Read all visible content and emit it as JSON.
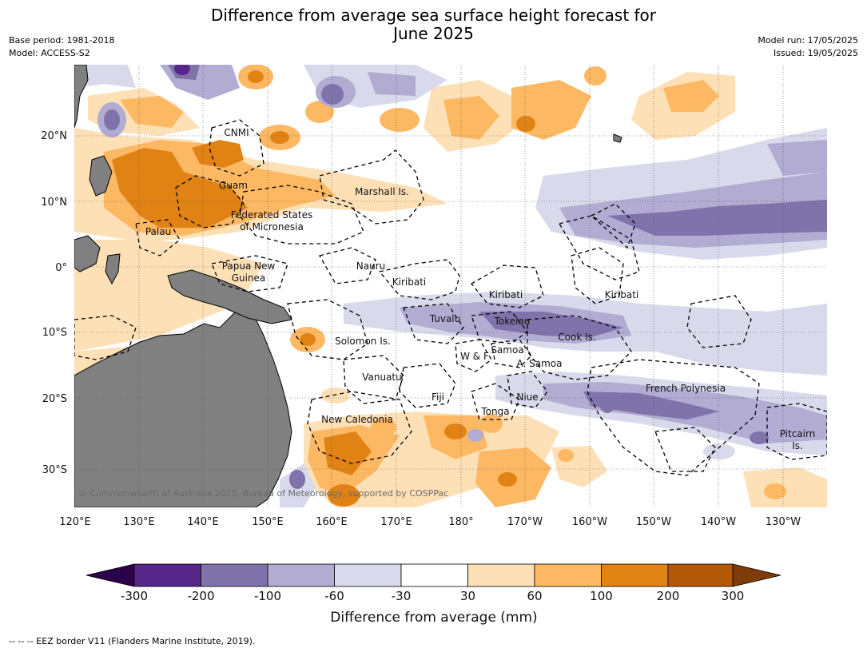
{
  "title_line1": "Difference from average sea surface height forecast for",
  "title_line2": "June 2025",
  "meta_left": {
    "base_period": "Base period: 1981-2018",
    "model": "Model: ACCESS-S2"
  },
  "meta_right": {
    "model_run": "Model run: 17/05/2025",
    "issued": "Issued: 19/05/2025"
  },
  "map": {
    "lon_ticks": [
      "120°E",
      "130°E",
      "140°E",
      "150°E",
      "160°E",
      "170°E",
      "180°",
      "170°W",
      "160°W",
      "150°W",
      "140°W",
      "130°W"
    ],
    "lat_ticks": [
      "20°N",
      "10°N",
      "0°",
      "10°S",
      "20°S",
      "30°S"
    ],
    "region_labels": [
      "CNMI",
      "Guam",
      "Marshall Is.",
      "Federated States",
      "of Micronesia",
      "Palau",
      "Papua New",
      "Guinea",
      "Nauru",
      "Kiribati",
      "Kiribati",
      "Kiribati",
      "Tuvalu",
      "Tokelau",
      "Solomon Is.",
      "Samoa",
      "W & F",
      "A. Samoa",
      "Cook Is.",
      "Vanuatu",
      "Fiji",
      "Niue",
      "French Polynesia",
      "Tonga",
      "New Caledonia",
      "Pitcairn",
      "Is."
    ],
    "copyright": "© Commonwealth of Australia 2025, Bureau of Meteorology, supported by COSPPac",
    "colors": {
      "land": "#808080",
      "ocean": "#ffffff",
      "eez_border": "#000000"
    }
  },
  "colorbar": {
    "title": "Difference from average (mm)",
    "ticks": [
      "-300",
      "-200",
      "-100",
      "-60",
      "-30",
      "30",
      "60",
      "100",
      "200",
      "300"
    ],
    "colors": [
      "#2d004b",
      "#542788",
      "#8073ac",
      "#b2abd2",
      "#d8daeb",
      "#ffffff",
      "#fee0b6",
      "#fdb863",
      "#e08214",
      "#b35806",
      "#7f3b08"
    ]
  },
  "footer": "--  --  -- EEZ border V11 (Flanders Marine Institute, 2019)."
}
